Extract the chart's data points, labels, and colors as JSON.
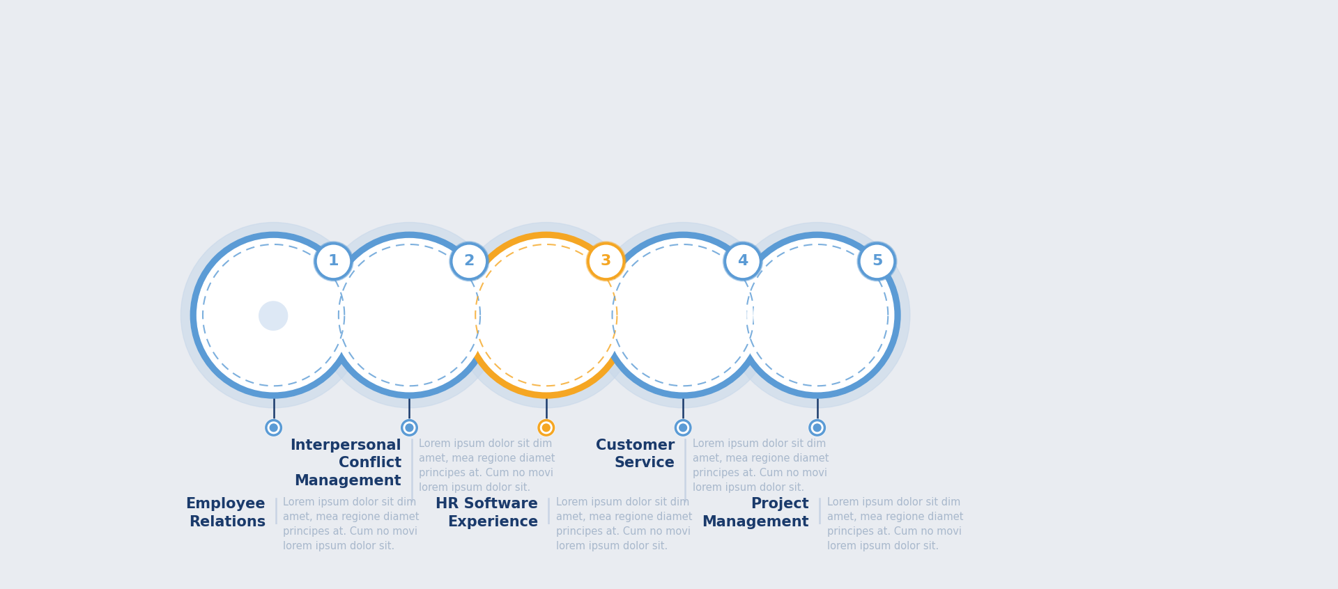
{
  "background_color": "#e9ecf1",
  "steps": [
    {
      "number": "1",
      "title": "Employee\nRelations",
      "description": "Lorem ipsum dolor sit dim\namet, mea regione diamet\nprincipes at. Cum no movi\nlorem ipsum dolor sit.",
      "text_row": "bottom",
      "circle_color": "#5b9bd5",
      "accent": false
    },
    {
      "number": "2",
      "title": "Interpersonal\nConflict\nManagement",
      "description": "Lorem ipsum dolor sit dim\namet, mea regione diamet\nprincipes at. Cum no movi\nlorem ipsum dolor sit.",
      "text_row": "top",
      "circle_color": "#5b9bd5",
      "accent": false
    },
    {
      "number": "3",
      "title": "HR Software\nExperience",
      "description": "Lorem ipsum dolor sit dim\namet, mea regione diamet\nprincipes at. Cum no movi\nlorem ipsum dolor sit.",
      "text_row": "bottom",
      "circle_color": "#f5a623",
      "accent": true
    },
    {
      "number": "4",
      "title": "Customer\nService",
      "description": "Lorem ipsum dolor sit dim\namet, mea regione diamet\nprincipes at. Cum no movi\nlorem ipsum dolor sit.",
      "text_row": "top",
      "circle_color": "#5b9bd5",
      "accent": false
    },
    {
      "number": "5",
      "title": "Project\nManagement",
      "description": "Lorem ipsum dolor sit dim\namet, mea regione diamet\nprincipes at. Cum no movi\nlorem ipsum dolor sit.",
      "text_row": "bottom",
      "circle_color": "#5b9bd5",
      "accent": false
    }
  ],
  "title_color": "#1a3a6b",
  "desc_color": "#a8b8cc",
  "stem_color": "#1a3a6b",
  "line_color": "#5b9bd5",
  "sep_color": "#c8d4e4"
}
